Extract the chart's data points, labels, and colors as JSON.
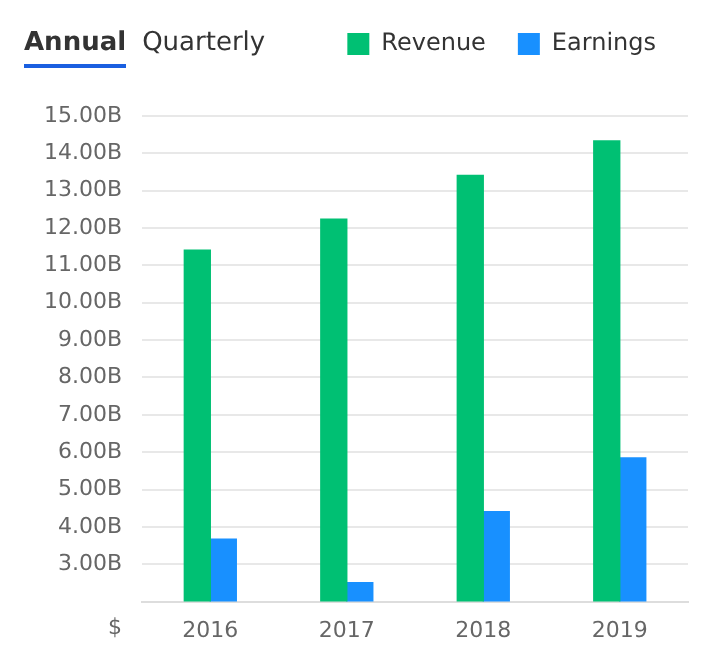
{
  "chart_data": {
    "type": "bar",
    "categories": [
      "2016",
      "2017",
      "2018",
      "2019"
    ],
    "series": [
      {
        "name": "Revenue",
        "color": "#00c073",
        "values": [
          11.41,
          12.24,
          13.41,
          14.33
        ]
      },
      {
        "name": "Earnings",
        "color": "#1890ff",
        "values": [
          3.67,
          2.51,
          4.41,
          5.85
        ]
      }
    ],
    "ylabel": "$",
    "ylim": [
      2,
      15
    ],
    "yticks": [
      {
        "value": 3,
        "label": "3.00B"
      },
      {
        "value": 4,
        "label": "4.00B"
      },
      {
        "value": 5,
        "label": "5.00B"
      },
      {
        "value": 6,
        "label": "6.00B"
      },
      {
        "value": 7,
        "label": "7.00B"
      },
      {
        "value": 8,
        "label": "8.00B"
      },
      {
        "value": 9,
        "label": "9.00B"
      },
      {
        "value": 10,
        "label": "10.00B"
      },
      {
        "value": 11,
        "label": "11.00B"
      },
      {
        "value": 12,
        "label": "12.00B"
      },
      {
        "value": 13,
        "label": "13.00B"
      },
      {
        "value": 14,
        "label": "14.00B"
      },
      {
        "value": 15,
        "label": "15.00B"
      }
    ],
    "grid": "y",
    "legend": "top right",
    "annotations": [
      "Annual",
      "Quarterly"
    ]
  }
}
